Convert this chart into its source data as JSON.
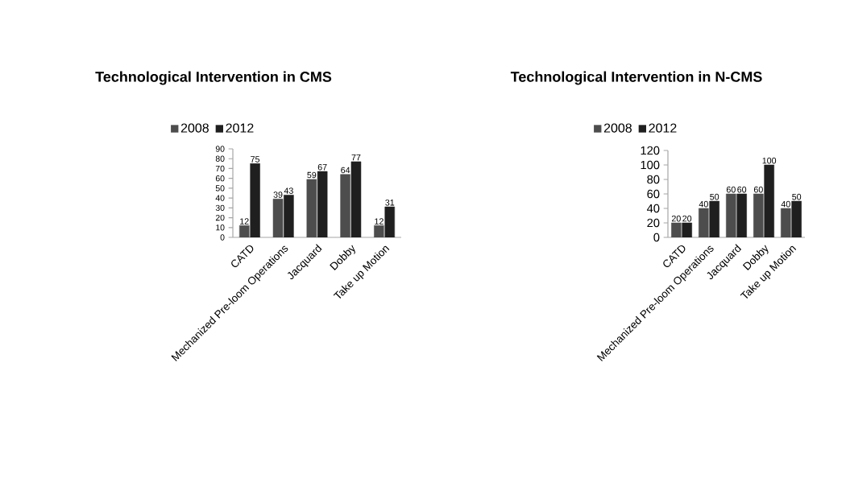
{
  "chart_data": [
    {
      "type": "bar",
      "title": "Technological Intervention in CMS",
      "categories": [
        "CATD",
        "Mechanized Pre-loom Operations",
        "Jacquard",
        "Dobby",
        "Take up Motion"
      ],
      "series": [
        {
          "name": "2008",
          "color": "#4d4d4d",
          "values": [
            12,
            39,
            59,
            64,
            12
          ]
        },
        {
          "name": "2012",
          "color": "#1f1f1f",
          "values": [
            75,
            43,
            67,
            77,
            31
          ]
        }
      ],
      "ylim": [
        0,
        90
      ],
      "yticks": [
        0,
        10,
        20,
        30,
        40,
        50,
        60,
        70,
        80,
        90
      ],
      "data_labels": true,
      "legend": "top",
      "grid": false
    },
    {
      "type": "bar",
      "title": "Technological Intervention in N-CMS",
      "categories": [
        "CATD",
        "Mechanized Pre-loom Operations",
        "Jacquard",
        "Dobby",
        "Take up Motion"
      ],
      "series": [
        {
          "name": "2008",
          "color": "#4d4d4d",
          "values": [
            20,
            40,
            60,
            60,
            40
          ]
        },
        {
          "name": "2012",
          "color": "#1f1f1f",
          "values": [
            20,
            50,
            60,
            100,
            50
          ]
        }
      ],
      "ylim": [
        0,
        120
      ],
      "yticks": [
        0,
        20,
        40,
        60,
        80,
        100,
        120
      ],
      "data_labels": true,
      "legend": "top",
      "grid": false
    }
  ]
}
